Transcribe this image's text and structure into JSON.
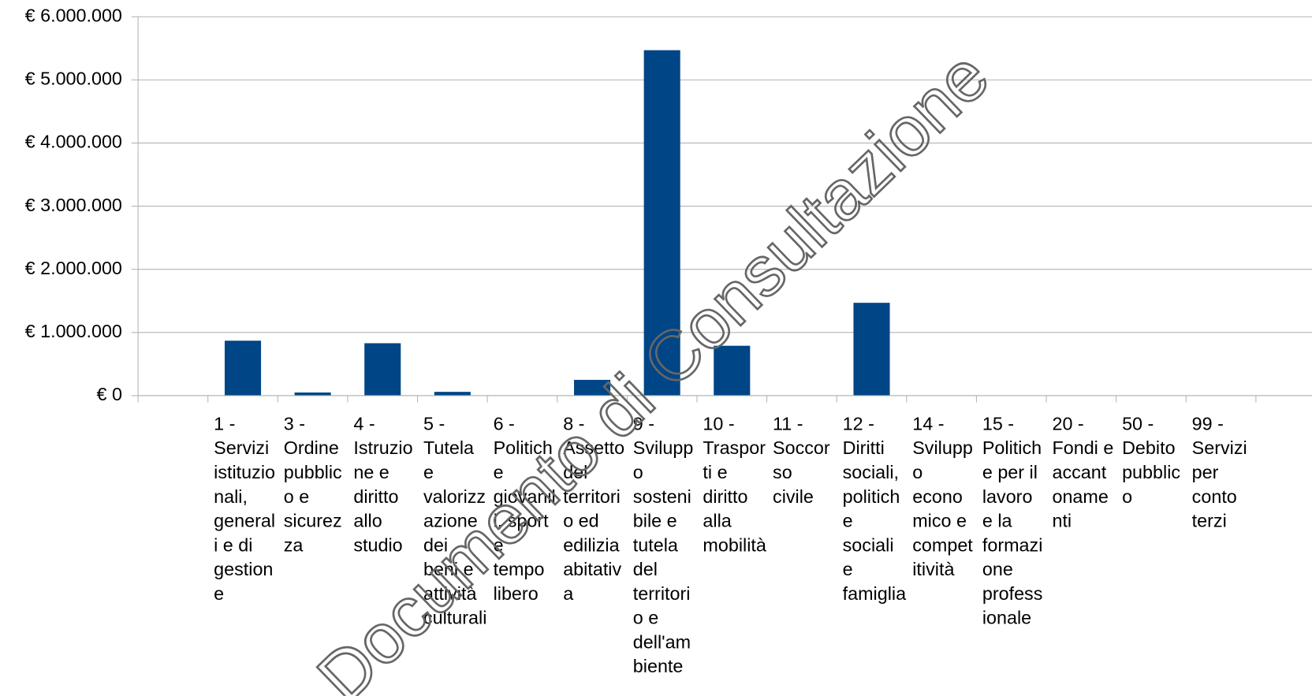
{
  "chart_data": {
    "type": "bar",
    "categories": [
      null,
      "1 - Servizi istituzionali, generali e di gestione",
      "3 - Ordine pubblico e sicurezza",
      "4 - Istruzione e diritto allo studio",
      "5 - Tutela e valorizzazione dei beni e attività culturali",
      "6 - Politiche giovanili, sport e tempo libero",
      "8 - Assetto del territorio ed edilizia abitativa",
      "9 - Sviluppo sostenibile e tutela del territorio e dell'ambiente",
      "10 - Trasporti e diritto alla mobilità",
      "11 - Soccorso civile",
      "12 - Diritti sociali, politiche sociali e famiglia",
      "14 - Sviluppo economico e competitività",
      "15 - Politiche per il lavoro e la formazione professionale",
      "20 - Fondi e accantonamenti",
      "50 - Debito pubblico",
      "99 - Servizi per conto terzi",
      null
    ],
    "values": [
      null,
      870000,
      50000,
      830000,
      60000,
      0,
      250000,
      5470000,
      790000,
      0,
      1470000,
      0,
      0,
      0,
      0,
      0,
      null
    ],
    "color": "#004586",
    "ylim": [
      0,
      6000000
    ],
    "yticks": [
      {
        "value": 0,
        "label": "€ 0"
      },
      {
        "value": 1000000,
        "label": "€ 1.000.000"
      },
      {
        "value": 2000000,
        "label": "€ 2.000.000"
      },
      {
        "value": 3000000,
        "label": "€ 3.000.000"
      },
      {
        "value": 4000000,
        "label": "€ 4.000.000"
      },
      {
        "value": 5000000,
        "label": "€ 5.000.000"
      },
      {
        "value": 6000000,
        "label": "€ 6.000.000"
      }
    ],
    "grid": true,
    "watermark": "Documento di Consultazione"
  }
}
